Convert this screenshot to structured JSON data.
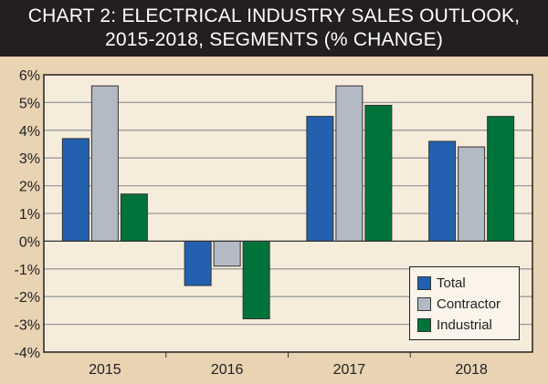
{
  "chart_data": {
    "type": "bar",
    "title": "CHART 2: ELECTRICAL INDUSTRY SALES OUTLOOK, 2015-2018, SEGMENTS (% CHANGE)",
    "title_lines": [
      "CHART 2: ELECTRICAL INDUSTRY SALES OUTLOOK,",
      "2015-2018, SEGMENTS (% CHANGE)"
    ],
    "categories": [
      "2015",
      "2016",
      "2017",
      "2018"
    ],
    "series": [
      {
        "name": "Total",
        "color": "#2360b0",
        "values": [
          3.7,
          -1.6,
          4.5,
          3.6
        ]
      },
      {
        "name": "Contractor",
        "color": "#b4bac3",
        "values": [
          5.6,
          -0.9,
          5.6,
          3.4
        ]
      },
      {
        "name": "Industrial",
        "color": "#00733a",
        "values": [
          1.7,
          -2.8,
          4.9,
          4.5
        ]
      }
    ],
    "ylim": [
      -4,
      6
    ],
    "yticks": [
      6,
      5,
      4,
      3,
      2,
      1,
      0,
      -1,
      -2,
      -3,
      -4
    ],
    "ytick_labels": [
      "6%",
      "5%",
      "4%",
      "3%",
      "2%",
      "1%",
      "0%",
      "-1%",
      "-2%",
      "-3%",
      "-4%"
    ],
    "xlabel": "",
    "ylabel": "",
    "grid": true,
    "legend_position": "bottom-right",
    "colors": {
      "background": "#e8d3b3",
      "plot_background": "#f5ecdc",
      "title_bar": "#231f20",
      "gridline": "#9a9a9a"
    }
  }
}
